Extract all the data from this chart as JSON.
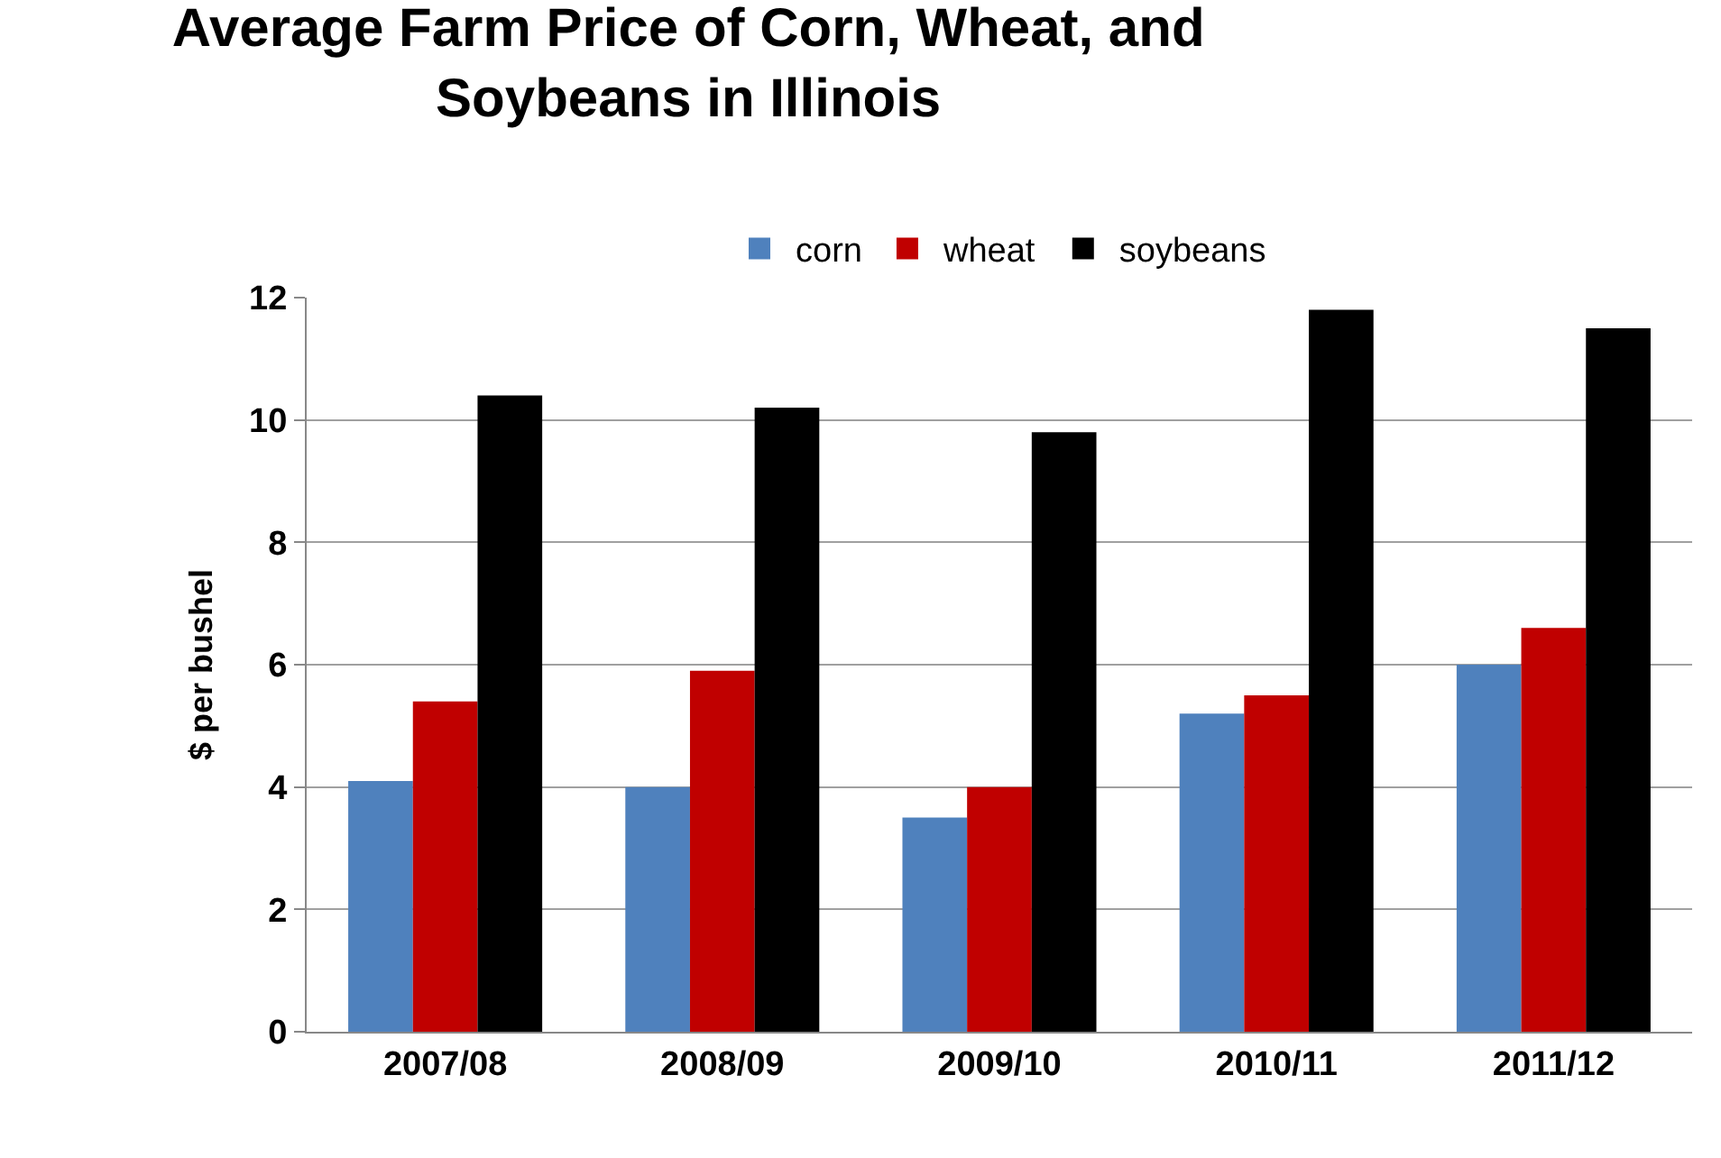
{
  "chart_data": {
    "type": "bar",
    "title": "Average Farm Price of Corn, Wheat, and Soybeans in Illinois",
    "ylabel": "$ per bushel",
    "categories": [
      "2007/08",
      "2008/09",
      "2009/10",
      "2010/11",
      "2011/12"
    ],
    "series": [
      {
        "name": "corn",
        "color": "#4f81bd",
        "values": [
          4.1,
          4.0,
          3.5,
          5.2,
          6.0
        ]
      },
      {
        "name": "wheat",
        "color": "#c00000",
        "values": [
          5.4,
          5.9,
          4.0,
          5.5,
          6.6
        ]
      },
      {
        "name": "soybeans",
        "color": "#000000",
        "values": [
          10.4,
          10.2,
          9.8,
          11.8,
          11.5
        ]
      }
    ],
    "ylim": [
      0,
      12
    ],
    "yticks": [
      0,
      2,
      4,
      6,
      8,
      10,
      12
    ],
    "grid": "y",
    "legend": "top"
  }
}
